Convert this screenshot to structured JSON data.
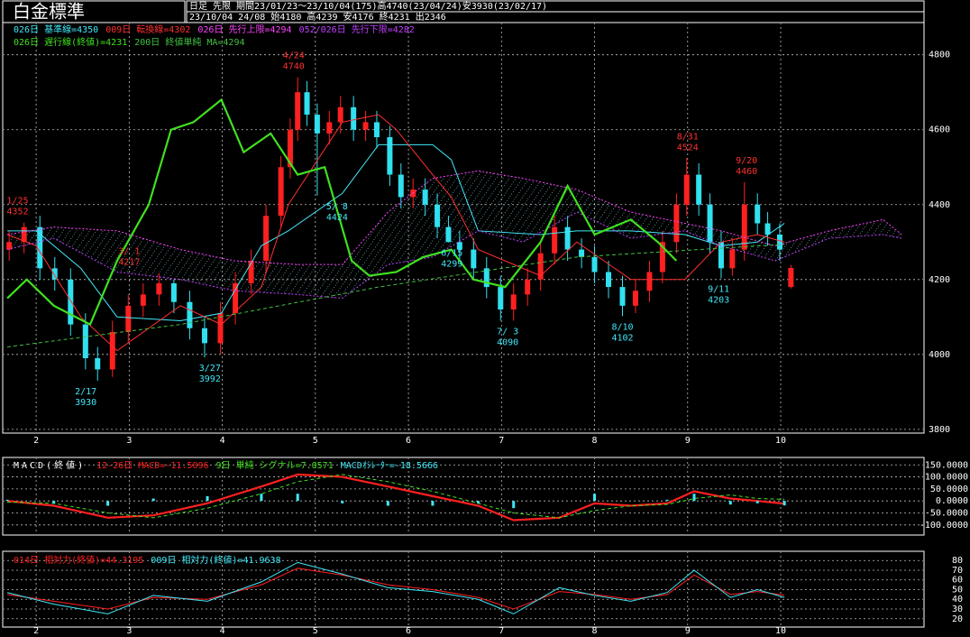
{
  "chart_data": [
    {
      "type": "candlestick",
      "title": "白金標準",
      "subtitle": "日足 先限 期間23/01/23～23/10/04(175)高4740(23/04/24)安3930(23/02/17)",
      "info": "23/10/04 24/08 始4180 高4239 安4176 終4231 出2346",
      "xlim": [
        1.66,
        11.54
      ],
      "xticks": [
        2,
        3,
        4,
        5,
        6,
        7,
        8,
        9,
        10
      ],
      "ylim": [
        3790,
        4886
      ],
      "yticks": [
        3800,
        4000,
        4200,
        4400,
        4600,
        4800
      ],
      "grid": true,
      "legend": "top-left",
      "up_color": "#ff2020",
      "down_color": "#30e0f0",
      "candles": {
        "x": [
          1.71,
          1.87,
          2.04,
          2.2,
          2.37,
          2.53,
          2.66,
          2.82,
          2.99,
          3.15,
          3.32,
          3.48,
          3.65,
          3.81,
          3.98,
          4.14,
          4.31,
          4.47,
          4.63,
          4.73,
          4.81,
          4.91,
          5.02,
          5.15,
          5.27,
          5.41,
          5.54,
          5.66,
          5.8,
          5.92,
          6.05,
          6.18,
          6.31,
          6.43,
          6.55,
          6.7,
          6.84,
          6.99,
          7.13,
          7.28,
          7.42,
          7.57,
          7.71,
          7.86,
          8.0,
          8.15,
          8.3,
          8.44,
          8.59,
          8.73,
          8.88,
          8.99,
          9.12,
          9.24,
          9.36,
          9.48,
          9.61,
          9.75,
          9.86,
          9.99,
          10.11
        ],
        "open": [
          4280,
          4300,
          4340,
          4230,
          4200,
          4080,
          3990,
          3960,
          4060,
          4130,
          4160,
          4190,
          4140,
          4070,
          4030,
          4110,
          4190,
          4250,
          4370,
          4500,
          4600,
          4700,
          4640,
          4590,
          4620,
          4660,
          4600,
          4620,
          4580,
          4480,
          4420,
          4440,
          4400,
          4340,
          4300,
          4280,
          4230,
          4180,
          4120,
          4160,
          4200,
          4270,
          4340,
          4280,
          4260,
          4220,
          4180,
          4130,
          4170,
          4220,
          4300,
          4400,
          4480,
          4400,
          4300,
          4230,
          4280,
          4400,
          4350,
          4320,
          4180
        ],
        "high": [
          4330,
          4352,
          4370,
          4260,
          4230,
          4110,
          4020,
          4090,
          4160,
          4190,
          4217,
          4200,
          4170,
          4100,
          4140,
          4220,
          4280,
          4400,
          4530,
          4630,
          4740,
          4730,
          4670,
          4650,
          4690,
          4690,
          4650,
          4650,
          4610,
          4510,
          4470,
          4470,
          4430,
          4370,
          4330,
          4310,
          4260,
          4210,
          4190,
          4230,
          4300,
          4370,
          4370,
          4310,
          4290,
          4250,
          4210,
          4200,
          4250,
          4330,
          4430,
          4524,
          4510,
          4430,
          4330,
          4310,
          4460,
          4430,
          4380,
          4350,
          4239
        ],
        "low": [
          4250,
          4270,
          4200,
          4170,
          4050,
          3960,
          3930,
          3940,
          4030,
          4100,
          4130,
          4110,
          4040,
          3992,
          4000,
          4080,
          4160,
          4220,
          4340,
          4470,
          4570,
          4610,
          4424,
          4560,
          4590,
          4570,
          4570,
          4550,
          4450,
          4390,
          4390,
          4370,
          4310,
          4299,
          4250,
          4200,
          4150,
          4090,
          4090,
          4130,
          4170,
          4240,
          4250,
          4230,
          4190,
          4150,
          4102,
          4110,
          4140,
          4190,
          4270,
          4370,
          4370,
          4270,
          4203,
          4210,
          4250,
          4320,
          4290,
          4250,
          4176
        ],
        "close": [
          4300,
          4340,
          4230,
          4200,
          4080,
          3990,
          3960,
          4060,
          4130,
          4160,
          4190,
          4140,
          4070,
          4030,
          4110,
          4190,
          4250,
          4370,
          4500,
          4600,
          4700,
          4640,
          4590,
          4620,
          4660,
          4600,
          4620,
          4580,
          4480,
          4420,
          4440,
          4400,
          4340,
          4300,
          4280,
          4230,
          4180,
          4120,
          4160,
          4200,
          4270,
          4340,
          4280,
          4260,
          4220,
          4180,
          4130,
          4170,
          4220,
          4300,
          4400,
          4480,
          4400,
          4300,
          4230,
          4280,
          4400,
          4350,
          4320,
          4280,
          4231
        ]
      },
      "series": [
        {
          "name": "026日 基準線=4350",
          "color": "#40e8f8",
          "style": "line",
          "x": [
            1.69,
            2.0,
            2.48,
            2.87,
            3.55,
            3.99,
            4.42,
            4.71,
            5.29,
            5.68,
            5.87,
            6.26,
            6.46,
            6.75,
            7.42,
            7.81,
            8.39,
            8.97,
            9.36,
            9.75,
            10.04
          ],
          "values": [
            4330,
            4330,
            4230,
            4100,
            4090,
            4110,
            4290,
            4330,
            4430,
            4560,
            4560,
            4560,
            4520,
            4330,
            4320,
            4330,
            4330,
            4320,
            4290,
            4300,
            4350
          ]
        },
        {
          "name": "009日 転換線=4302",
          "color": "#ff3030",
          "style": "line",
          "x": [
            1.69,
            2.0,
            2.48,
            2.87,
            3.55,
            3.99,
            4.42,
            4.71,
            5.29,
            5.68,
            5.87,
            6.26,
            6.46,
            6.75,
            7.42,
            7.81,
            8.39,
            8.97,
            9.36,
            9.75,
            10.04
          ],
          "values": [
            4320,
            4290,
            4100,
            4010,
            4130,
            4080,
            4180,
            4400,
            4620,
            4640,
            4600,
            4480,
            4420,
            4280,
            4210,
            4300,
            4200,
            4200,
            4300,
            4320,
            4300
          ]
        },
        {
          "name": "026日 先行上限=4294",
          "color": "#ff40ff",
          "style": "cloud-upper",
          "x": [
            1.69,
            2.19,
            2.87,
            3.55,
            4.13,
            4.81,
            5.29,
            5.78,
            6.26,
            6.75,
            7.23,
            7.81,
            8.39,
            8.97,
            9.36,
            9.94,
            10.52,
            11.1,
            11.3
          ],
          "values": [
            4320,
            4340,
            4330,
            4280,
            4250,
            4240,
            4240,
            4380,
            4470,
            4490,
            4470,
            4440,
            4380,
            4350,
            4330,
            4290,
            4330,
            4360,
            4320
          ]
        },
        {
          "name": "052/026日 先行下限=4282",
          "color": "#c040ff",
          "style": "cloud-lower",
          "x": [
            1.69,
            2.19,
            2.87,
            3.55,
            4.13,
            4.81,
            5.29,
            5.78,
            6.26,
            6.75,
            7.23,
            7.81,
            8.39,
            8.97,
            9.36,
            9.94,
            10.52,
            11.1,
            11.3
          ],
          "values": [
            4280,
            4310,
            4220,
            4200,
            4170,
            4160,
            4150,
            4240,
            4260,
            4330,
            4300,
            4380,
            4310,
            4330,
            4290,
            4250,
            4310,
            4320,
            4310
          ]
        },
        {
          "name": "026日 遅行線(終値)=4231",
          "color": "#40e020",
          "style": "thick",
          "x": [
            1.69,
            1.9,
            2.19,
            2.58,
            2.87,
            3.21,
            3.45,
            3.69,
            3.99,
            4.23,
            4.52,
            4.81,
            5.1,
            5.39,
            5.58,
            5.87,
            6.16,
            6.46,
            6.7,
            7.04,
            7.42,
            7.71,
            8.0,
            8.39,
            8.68,
            8.88
          ],
          "values": [
            4150,
            4200,
            4130,
            4080,
            4250,
            4400,
            4600,
            4620,
            4680,
            4540,
            4590,
            4480,
            4500,
            4250,
            4210,
            4220,
            4260,
            4280,
            4200,
            4180,
            4300,
            4450,
            4320,
            4360,
            4300,
            4250
          ]
        },
        {
          "name": "200日 終値単純 MA=4294",
          "color": "#40c040",
          "style": "dashed",
          "x": [
            1.69,
            3.55,
            5.68,
            7.81,
            10.04
          ],
          "values": [
            4020,
            4080,
            4180,
            4260,
            4294
          ]
        }
      ],
      "annotations": [
        {
          "date": "1/25",
          "value": 4352,
          "position": "above"
        },
        {
          "date": "2/17",
          "value": 3930,
          "position": "below"
        },
        {
          "date": "3/ 1",
          "value": 4217,
          "position": "above"
        },
        {
          "date": "3/27",
          "value": 3992,
          "position": "below"
        },
        {
          "date": "4/24",
          "value": 4740,
          "position": "above"
        },
        {
          "date": "5/ 8",
          "value": 4424,
          "position": "below"
        },
        {
          "date": "6/15",
          "value": 4299,
          "position": "below"
        },
        {
          "date": "7/ 3",
          "value": 4090,
          "position": "below"
        },
        {
          "date": "8/10",
          "value": 4102,
          "position": "below"
        },
        {
          "date": "8/31",
          "value": 4524,
          "position": "above"
        },
        {
          "date": "9/11",
          "value": 4203,
          "position": "below"
        },
        {
          "date": "9/20",
          "value": 4460,
          "position": "above"
        }
      ]
    },
    {
      "type": "line",
      "title": "MACD(終値)",
      "xlim": [
        1.66,
        11.54
      ],
      "ylim": [
        -142,
        181
      ],
      "grid": true,
      "legend": "top-left",
      "yticks": [
        {
          "value": 150,
          "label": "150.0000"
        },
        {
          "value": 100,
          "label": "100.0000"
        },
        {
          "value": 50,
          "label": "50.0000"
        },
        {
          "value": 0,
          "label": "0.0000"
        },
        {
          "value": -50,
          "label": "-50.0000"
        },
        {
          "value": -100,
          "label": "-100.0000"
        }
      ],
      "series": [
        {
          "name": "12-26日 MACD=-11.5096",
          "color": "#ff2020",
          "style": "thick",
          "x": [
            1.69,
            2.19,
            2.77,
            3.26,
            3.84,
            4.42,
            4.81,
            5.29,
            5.78,
            6.26,
            6.75,
            7.13,
            7.62,
            8.0,
            8.39,
            8.78,
            9.07,
            9.46,
            9.75,
            10.04
          ],
          "values": [
            0,
            -20,
            -70,
            -60,
            -10,
            60,
            110,
            100,
            60,
            20,
            -20,
            -80,
            -70,
            -10,
            -20,
            -10,
            40,
            10,
            0,
            -11.5096
          ]
        },
        {
          "name": "9日 単純 シグナル=7.0571",
          "color": "#40e020",
          "style": "dashed",
          "x": [
            1.69,
            2.19,
            2.77,
            3.26,
            3.84,
            4.42,
            4.81,
            5.29,
            5.78,
            6.26,
            6.75,
            7.13,
            7.62,
            8.0,
            8.39,
            8.78,
            9.07,
            9.46,
            9.75,
            10.04
          ],
          "values": [
            -5,
            -10,
            -50,
            -70,
            -30,
            30,
            80,
            110,
            80,
            40,
            -10,
            -50,
            -70,
            -40,
            -20,
            -15,
            10,
            25,
            10,
            7.0571
          ]
        },
        {
          "name": "MACDｵｼﾚｰﾀｰ=-18.5666",
          "color": "#40e8f8",
          "style": "bar",
          "x": [
            1.69,
            2.19,
            2.77,
            3.26,
            3.84,
            4.42,
            4.81,
            5.29,
            5.78,
            6.26,
            6.75,
            7.13,
            7.62,
            8.0,
            8.39,
            8.78,
            9.07,
            9.46,
            9.75,
            10.04
          ],
          "values": [
            5,
            -10,
            -20,
            10,
            20,
            30,
            30,
            -10,
            -20,
            -20,
            -10,
            -30,
            0,
            30,
            0,
            5,
            30,
            -15,
            -10,
            -18.5666
          ]
        }
      ]
    },
    {
      "type": "line",
      "xlim": [
        1.66,
        11.54
      ],
      "xticks": [
        2,
        3,
        4,
        5,
        6,
        7,
        8,
        9,
        10
      ],
      "ylim": [
        11.4,
        89.5
      ],
      "yticks": [
        20,
        30,
        40,
        50,
        60,
        70,
        80
      ],
      "grid": true,
      "legend": "top-left",
      "series": [
        {
          "name": "014日 相対力(終値)=44.3195",
          "color": "#ff2020",
          "style": "line",
          "x": [
            1.69,
            2.19,
            2.77,
            3.26,
            3.84,
            4.42,
            4.81,
            5.29,
            5.78,
            6.26,
            6.75,
            7.13,
            7.62,
            8.0,
            8.39,
            8.78,
            9.07,
            9.46,
            9.75,
            10.04
          ],
          "values": [
            45,
            38,
            30,
            42,
            40,
            55,
            72,
            65,
            55,
            50,
            42,
            30,
            48,
            45,
            40,
            45,
            65,
            45,
            48,
            44.3195
          ]
        },
        {
          "name": "009日 相対力(終値)=41.9638",
          "color": "#40e8f8",
          "style": "line",
          "x": [
            1.69,
            2.19,
            2.77,
            3.26,
            3.84,
            4.42,
            4.81,
            5.29,
            5.78,
            6.26,
            6.75,
            7.13,
            7.62,
            8.0,
            8.39,
            8.78,
            9.07,
            9.46,
            9.75,
            10.04
          ],
          "values": [
            47,
            35,
            25,
            44,
            38,
            58,
            78,
            66,
            52,
            48,
            40,
            25,
            52,
            44,
            38,
            47,
            70,
            42,
            50,
            41.9638
          ]
        }
      ]
    }
  ]
}
